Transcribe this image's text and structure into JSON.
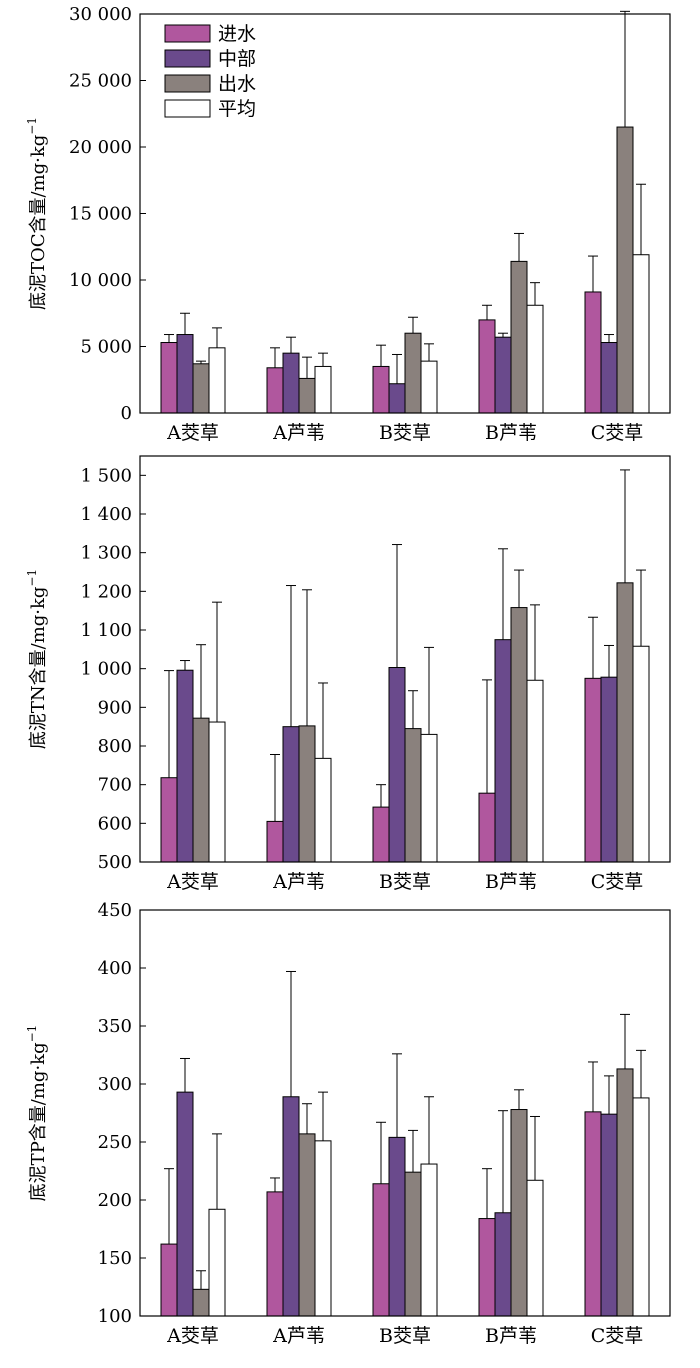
{
  "colors": {
    "进水": "#b0579e",
    "中部": "#6a4a8c",
    "出水": "#8a817d",
    "平均": "#ffffff"
  },
  "chart_data": [
    {
      "type": "bar",
      "ylabel": "底泥TOC含量/mg·kg⁻¹",
      "ylabel_main": "底泥TOC含量/mg·kg",
      "ylabel_sup": "−1",
      "ylim": [
        0,
        30000
      ],
      "yticks": [
        0,
        5000,
        10000,
        15000,
        20000,
        25000,
        30000
      ],
      "ytick_labels": [
        "0",
        "5 000",
        "10 000",
        "15 000",
        "20 000",
        "25 000",
        "30 000"
      ],
      "categories": [
        "A茭草",
        "A芦苇",
        "B茭草",
        "B芦苇",
        "C茭草"
      ],
      "legend": "top-left",
      "series": [
        {
          "name": "进水",
          "values": [
            5300,
            3400,
            3500,
            7000,
            9100
          ],
          "errors": [
            600,
            1500,
            1600,
            1100,
            2700
          ]
        },
        {
          "name": "中部",
          "values": [
            5900,
            4500,
            2200,
            5700,
            5300
          ],
          "errors": [
            1600,
            1200,
            2200,
            300,
            600
          ]
        },
        {
          "name": "出水",
          "values": [
            3700,
            2600,
            6000,
            11400,
            21500
          ],
          "errors": [
            200,
            1600,
            1200,
            2100,
            8700
          ]
        },
        {
          "name": "平均",
          "values": [
            4900,
            3500,
            3900,
            8100,
            11900
          ],
          "errors": [
            1500,
            1000,
            1300,
            1700,
            5300
          ]
        }
      ]
    },
    {
      "type": "bar",
      "ylabel": "底泥TN含量/mg·kg⁻¹",
      "ylabel_main": "底泥TN含量/mg·kg",
      "ylabel_sup": "−1",
      "ylim": [
        500,
        1550
      ],
      "yticks": [
        500,
        600,
        700,
        800,
        900,
        1000,
        1100,
        1200,
        1300,
        1400,
        1500
      ],
      "ytick_labels": [
        "500",
        "600",
        "700",
        "800",
        "900",
        "1 000",
        "1 100",
        "1 200",
        "1 300",
        "1 400",
        "1 500"
      ],
      "categories": [
        "A茭草",
        "A芦苇",
        "B茭草",
        "B芦苇",
        "C茭草"
      ],
      "series": [
        {
          "name": "进水",
          "values": [
            718,
            605,
            642,
            678,
            975
          ],
          "errors": [
            277,
            173,
            58,
            293,
            158
          ]
        },
        {
          "name": "中部",
          "values": [
            996,
            850,
            1003,
            1075,
            978
          ],
          "errors": [
            25,
            365,
            318,
            235,
            82
          ]
        },
        {
          "name": "出水",
          "values": [
            872,
            852,
            845,
            1158,
            1222
          ],
          "errors": [
            190,
            352,
            98,
            97,
            292
          ]
        },
        {
          "name": "平均",
          "values": [
            862,
            768,
            830,
            970,
            1058
          ],
          "errors": [
            310,
            195,
            225,
            195,
            197
          ]
        }
      ]
    },
    {
      "type": "bar",
      "ylabel": "底泥TP含量/mg·kg⁻¹",
      "ylabel_main": "底泥TP含量/mg·kg",
      "ylabel_sup": "−1",
      "ylim": [
        100,
        450
      ],
      "yticks": [
        100,
        150,
        200,
        250,
        300,
        350,
        400,
        450
      ],
      "ytick_labels": [
        "100",
        "150",
        "200",
        "250",
        "300",
        "350",
        "400",
        "450"
      ],
      "categories": [
        "A茭草",
        "A芦苇",
        "B茭草",
        "B芦苇",
        "C茭草"
      ],
      "series": [
        {
          "name": "进水",
          "values": [
            162,
            207,
            214,
            184,
            276
          ],
          "errors": [
            65,
            12,
            53,
            43,
            43
          ]
        },
        {
          "name": "中部",
          "values": [
            293,
            289,
            254,
            189,
            274
          ],
          "errors": [
            29,
            108,
            72,
            88,
            33
          ]
        },
        {
          "name": "出水",
          "values": [
            123,
            257,
            224,
            278,
            313
          ],
          "errors": [
            16,
            26,
            36,
            17,
            47
          ]
        },
        {
          "name": "平均",
          "values": [
            192,
            251,
            231,
            217,
            288
          ],
          "errors": [
            65,
            42,
            58,
            55,
            41
          ]
        }
      ]
    }
  ]
}
